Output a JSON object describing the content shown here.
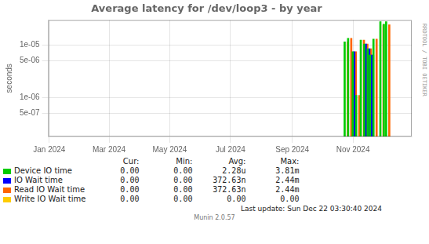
{
  "chart_data": {
    "type": "bar",
    "title": "Average latency for /dev/loop3 - by year",
    "ylabel": "seconds",
    "log": "y",
    "grid": true,
    "xlim": [
      1703980800,
      1735516800
    ],
    "xticks": [
      {
        "value": 1704067200,
        "label": "Jan 2024"
      },
      {
        "value": 1709251200,
        "label": "Mar 2024"
      },
      {
        "value": 1714521600,
        "label": "May 2024"
      },
      {
        "value": 1719792000,
        "label": "Jul 2024"
      },
      {
        "value": 1725148800,
        "label": "Sep 2024"
      },
      {
        "value": 1730419200,
        "label": "Nov 2024"
      }
    ],
    "ylim": [
      1.8e-07,
      3e-05
    ],
    "yticks": [
      {
        "value": 5e-07,
        "label": "5e-07"
      },
      {
        "value": 1e-06,
        "label": "1e-06"
      },
      {
        "value": 5e-06,
        "label": "5e-06"
      },
      {
        "value": 1e-05,
        "label": "1e-05"
      }
    ],
    "x": [
      1729900000,
      1730200000,
      1730600000,
      1730900000,
      1731300000,
      1731600000,
      1731900000,
      1732100000,
      1732400000,
      1733000000,
      1733300000,
      1733500000
    ],
    "stats_header": [
      "Cur:",
      "Min:",
      "Avg:",
      "Max:"
    ],
    "series": [
      {
        "name": "Device IO time",
        "color": "#00cc00",
        "values": [
          1.15e-05,
          1.35e-05,
          7.5e-06,
          1.1e-06,
          1.25e-05,
          1.05e-05,
          8.5e-06,
          6.5e-06,
          1.3e-05,
          2.8e-05,
          2.5e-05,
          2.8e-05
        ],
        "stats": [
          "0.00",
          "0.00",
          "2.28u",
          "3.81m"
        ]
      },
      {
        "name": "IO Wait time",
        "color": "#0000ff",
        "values": [
          null,
          null,
          7.5e-06,
          null,
          null,
          1.05e-05,
          8.5e-06,
          6.5e-06,
          null,
          null,
          null,
          null
        ],
        "stats": [
          "0.00",
          "0.00",
          "372.63n",
          "2.44m"
        ]
      },
      {
        "name": "Read IO Wait time",
        "color": "#ff6600",
        "values": [
          1.15e-05,
          1.35e-05,
          7.5e-06,
          1.1e-06,
          1.25e-05,
          1.05e-05,
          8.5e-06,
          6.5e-06,
          1.3e-05,
          2.44e-05,
          null,
          2.44e-05
        ],
        "stats": [
          "0.00",
          "0.00",
          "372.63n",
          "2.44m"
        ]
      },
      {
        "name": "Write IO Wait time",
        "color": "#ffcc00",
        "values": [
          null,
          null,
          null,
          null,
          null,
          null,
          null,
          null,
          null,
          null,
          null,
          null
        ],
        "stats": [
          "0.00",
          "0.00",
          "0.00",
          "0.00"
        ]
      }
    ],
    "annotations": [
      "RRDTOOL / TOBI OETIKER",
      "Last update: Sun Dec 22 03:30:40 2024",
      "Munin 2.0.57"
    ]
  }
}
